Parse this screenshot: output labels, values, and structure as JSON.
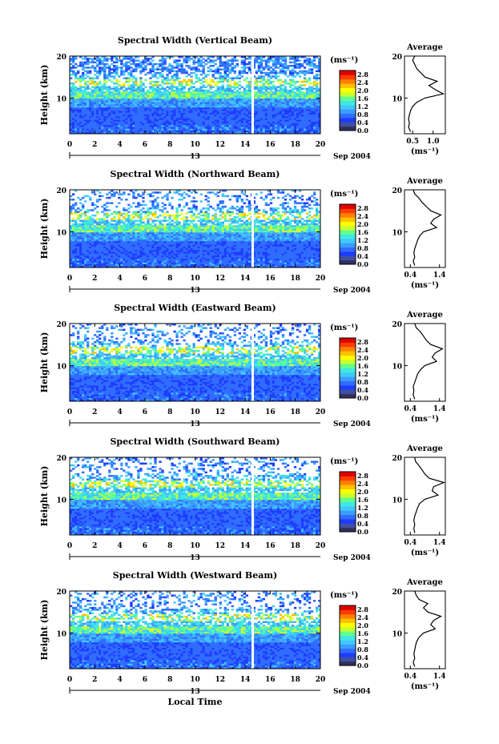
{
  "figure": {
    "xlabel": "Local Time",
    "date_label": "Sep 2004",
    "day_label": "13",
    "y_axis_label": "Height (km)",
    "units_label": "(ms⁻¹)",
    "average_title": "Average",
    "average_xlabel": "(ms⁻¹)"
  },
  "colors": {
    "scale": [
      "#303060",
      "#4050a0",
      "#1e3cff",
      "#2f6cff",
      "#3c9cff",
      "#40c8ff",
      "#40e8e0",
      "#60ff90",
      "#c8ff30",
      "#ffff00",
      "#ffc000",
      "#ff8000",
      "#ff3c00",
      "#e00000"
    ]
  },
  "chart_data": [
    {
      "type": "heatmap",
      "title": "Spectral Width (Vertical Beam)",
      "x_range": [
        0,
        20
      ],
      "x_ticks": [
        "0",
        "2",
        "4",
        "6",
        "8",
        "10",
        "12",
        "14",
        "16",
        "18",
        "20"
      ],
      "y_range": [
        1.5,
        20
      ],
      "y_ticks": [
        "10",
        "20"
      ],
      "data_gap_time": 14.6,
      "colorbar_ticks": [
        "0.0",
        "0.4",
        "0.8",
        "1.2",
        "1.6",
        "2.0",
        "2.4",
        "2.8"
      ],
      "average_profile": {
        "xlim": [
          0.3,
          1.3
        ],
        "xticks": [
          "0.5",
          "1.0"
        ],
        "height": [
          2,
          3,
          4,
          5,
          6,
          7,
          8,
          9,
          10,
          11,
          12,
          13,
          14,
          15,
          16,
          17,
          18,
          19,
          20
        ],
        "width": [
          0.45,
          0.4,
          0.42,
          0.4,
          0.42,
          0.45,
          0.5,
          0.6,
          0.8,
          1.25,
          1.05,
          0.9,
          1.1,
          0.8,
          0.7,
          0.6,
          0.55,
          0.5,
          0.55
        ]
      }
    },
    {
      "type": "heatmap",
      "title": "Spectral Width (Northward Beam)",
      "x_range": [
        0,
        20
      ],
      "x_ticks": [
        "0",
        "2",
        "4",
        "6",
        "8",
        "10",
        "12",
        "14",
        "16",
        "18",
        "20"
      ],
      "y_range": [
        1.5,
        20
      ],
      "y_ticks": [
        "10",
        "20"
      ],
      "data_gap_time": 14.6,
      "colorbar_ticks": [
        "0.0",
        "0.4",
        "0.8",
        "1.2",
        "1.6",
        "2.0",
        "2.4",
        "2.8"
      ],
      "average_profile": {
        "xlim": [
          0.2,
          1.6
        ],
        "xticks": [
          "0.4",
          "1.4"
        ],
        "height": [
          2,
          3,
          4,
          5,
          6,
          7,
          8,
          9,
          10,
          11,
          12,
          13,
          14,
          15,
          16,
          17,
          18,
          19,
          20
        ],
        "width": [
          0.55,
          0.5,
          0.55,
          0.52,
          0.55,
          0.6,
          0.65,
          0.72,
          0.85,
          1.3,
          1.1,
          1.2,
          1.45,
          1.1,
          0.95,
          0.8,
          0.7,
          0.55,
          0.5
        ]
      }
    },
    {
      "type": "heatmap",
      "title": "Spectral Width (Eastward Beam)",
      "x_range": [
        0,
        20
      ],
      "x_ticks": [
        "0",
        "2",
        "4",
        "6",
        "8",
        "10",
        "12",
        "14",
        "16",
        "18",
        "20"
      ],
      "y_range": [
        1.5,
        20
      ],
      "y_ticks": [
        "10",
        "20"
      ],
      "data_gap_time": 14.6,
      "colorbar_ticks": [
        "0.0",
        "0.4",
        "0.8",
        "1.2",
        "1.6",
        "2.0",
        "2.4",
        "2.8"
      ],
      "average_profile": {
        "xlim": [
          0.2,
          1.6
        ],
        "xticks": [
          "0.4",
          "1.4"
        ],
        "height": [
          2,
          3,
          4,
          5,
          6,
          7,
          8,
          9,
          10,
          11,
          12,
          13,
          14,
          15,
          16,
          17,
          18,
          19,
          20
        ],
        "width": [
          0.55,
          0.5,
          0.52,
          0.5,
          0.55,
          0.6,
          0.65,
          0.75,
          0.9,
          1.3,
          1.15,
          1.25,
          1.5,
          1.1,
          0.95,
          0.85,
          0.75,
          0.6,
          0.55
        ]
      }
    },
    {
      "type": "heatmap",
      "title": "Spectral Width (Southward Beam)",
      "x_range": [
        0,
        20
      ],
      "x_ticks": [
        "0",
        "2",
        "4",
        "6",
        "8",
        "10",
        "12",
        "14",
        "16",
        "18",
        "20"
      ],
      "y_range": [
        1.5,
        20
      ],
      "y_ticks": [
        "10",
        "20"
      ],
      "data_gap_time": 14.6,
      "colorbar_ticks": [
        "0.0",
        "0.4",
        "0.8",
        "1.2",
        "1.6",
        "2.0",
        "2.4",
        "2.8"
      ],
      "average_profile": {
        "xlim": [
          0.2,
          1.6
        ],
        "xticks": [
          "0.4",
          "1.4"
        ],
        "height": [
          2,
          3,
          4,
          5,
          6,
          7,
          8,
          9,
          10,
          11,
          12,
          13,
          14,
          15,
          16,
          17,
          18,
          19,
          20
        ],
        "width": [
          0.55,
          0.52,
          0.55,
          0.52,
          0.55,
          0.6,
          0.65,
          0.72,
          0.9,
          1.35,
          1.15,
          1.2,
          1.55,
          1.05,
          0.9,
          0.8,
          0.7,
          0.58,
          0.55
        ]
      }
    },
    {
      "type": "heatmap",
      "title": "Spectral Width (Westward Beam)",
      "x_range": [
        0,
        20
      ],
      "x_ticks": [
        "0",
        "2",
        "4",
        "6",
        "8",
        "10",
        "12",
        "14",
        "16",
        "18",
        "20"
      ],
      "y_range": [
        1.5,
        20
      ],
      "y_ticks": [
        "10",
        "20"
      ],
      "data_gap_time": 14.6,
      "colorbar_ticks": [
        "0.0",
        "0.4",
        "0.8",
        "1.2",
        "1.6",
        "2.0",
        "2.4",
        "2.8"
      ],
      "average_profile": {
        "xlim": [
          0.2,
          1.6
        ],
        "xticks": [
          "0.4",
          "1.4"
        ],
        "height": [
          2,
          3,
          4,
          5,
          6,
          7,
          8,
          9,
          10,
          11,
          12,
          13,
          14,
          15,
          16,
          17,
          18,
          19,
          20
        ],
        "width": [
          0.55,
          0.5,
          0.55,
          0.52,
          0.55,
          0.58,
          0.62,
          0.7,
          0.85,
          1.25,
          1.1,
          1.2,
          1.45,
          1.0,
          0.85,
          1.0,
          0.7,
          0.6,
          0.55
        ]
      }
    }
  ]
}
